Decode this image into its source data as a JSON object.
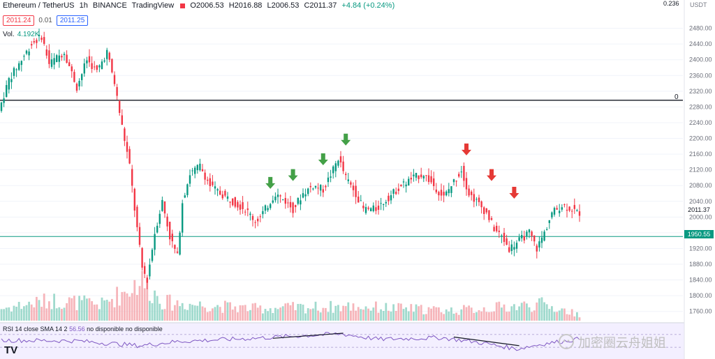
{
  "header": {
    "symbol": "Ethereum / TetherUS",
    "interval": "1h",
    "exchange": "BINANCE",
    "source": "TradingView",
    "open": "O2006.53",
    "high": "H2016.88",
    "low": "L2006.53",
    "close": "C2011.37",
    "change": "+4.84 (+0.24%)",
    "bid": "2011.24",
    "spread": "0.01",
    "ask": "2011.25",
    "vol_label": "Vol.",
    "vol_value": "4.192K"
  },
  "axis": {
    "currency": "USDT",
    "top_value": "0.236"
  },
  "zero_label": "0",
  "last_price_label": "2011.37",
  "level_label": "1950.55",
  "rsi": {
    "legend": "RSI 14 close SMA 14 2",
    "value": "56.56",
    "na1": "no disponible",
    "na2": "no disponible"
  },
  "watermark": {
    "text": "加密圈云舟姐姐"
  },
  "logo": {
    "text": "TV"
  },
  "colors": {
    "up": "#089981",
    "down": "#f23645",
    "rsi": "#7e57c2",
    "level": "#089981"
  },
  "chart_data": {
    "type": "candlestick",
    "y_ticks": [
      2480,
      2440,
      2400,
      2360,
      2320,
      2280,
      2240,
      2200,
      2160,
      2120,
      2080,
      2040,
      2000,
      1960,
      1920,
      1880,
      1840,
      1800,
      1760
    ],
    "ylim": [
      1740,
      2520
    ],
    "horizontal_levels": [
      2297,
      1950.55
    ],
    "path": [
      [
        0,
        2270
      ],
      [
        4,
        2350
      ],
      [
        9,
        2400
      ],
      [
        13,
        2440
      ],
      [
        17,
        2460
      ],
      [
        20,
        2390
      ],
      [
        26,
        2420
      ],
      [
        31,
        2330
      ],
      [
        35,
        2400
      ],
      [
        39,
        2370
      ],
      [
        43,
        2420
      ],
      [
        46,
        2340
      ],
      [
        49,
        2230
      ],
      [
        52,
        2130
      ],
      [
        54,
        2020
      ],
      [
        57,
        1870
      ],
      [
        59,
        1840
      ],
      [
        62,
        1960
      ],
      [
        65,
        2040
      ],
      [
        68,
        1950
      ],
      [
        71,
        1900
      ],
      [
        73,
        2040
      ],
      [
        76,
        2110
      ],
      [
        80,
        2130
      ],
      [
        84,
        2080
      ],
      [
        88,
        2060
      ],
      [
        93,
        2040
      ],
      [
        98,
        2020
      ],
      [
        102,
        1990
      ],
      [
        104,
        2000
      ],
      [
        107,
        2030
      ],
      [
        110,
        2060
      ],
      [
        114,
        2040
      ],
      [
        117,
        2020
      ],
      [
        121,
        2060
      ],
      [
        125,
        2080
      ],
      [
        129,
        2070
      ],
      [
        133,
        2120
      ],
      [
        135,
        2150
      ],
      [
        138,
        2100
      ],
      [
        142,
        2060
      ],
      [
        145,
        2020
      ],
      [
        150,
        2020
      ],
      [
        155,
        2050
      ],
      [
        160,
        2080
      ],
      [
        165,
        2100
      ],
      [
        169,
        2110
      ],
      [
        173,
        2080
      ],
      [
        177,
        2050
      ],
      [
        180,
        2080
      ],
      [
        184,
        2120
      ],
      [
        187,
        2060
      ],
      [
        190,
        2040
      ],
      [
        194,
        2010
      ],
      [
        197,
        1970
      ],
      [
        200,
        1950
      ],
      [
        203,
        1920
      ],
      [
        207,
        1940
      ],
      [
        211,
        1960
      ],
      [
        214,
        1920
      ],
      [
        217,
        1960
      ],
      [
        220,
        2010
      ],
      [
        224,
        2030
      ],
      [
        228,
        2020
      ],
      [
        230,
        2011
      ]
    ],
    "volume_path": [
      [
        0,
        0.3
      ],
      [
        20,
        0.5
      ],
      [
        40,
        0.4
      ],
      [
        50,
        0.75
      ],
      [
        55,
        1.0
      ],
      [
        65,
        0.45
      ],
      [
        100,
        0.3
      ],
      [
        140,
        0.35
      ],
      [
        180,
        0.25
      ],
      [
        215,
        0.4
      ],
      [
        230,
        0.15
      ]
    ],
    "rsi_path": [
      [
        0,
        52
      ],
      [
        30,
        50
      ],
      [
        55,
        35
      ],
      [
        70,
        48
      ],
      [
        100,
        58
      ],
      [
        120,
        66
      ],
      [
        135,
        72
      ],
      [
        150,
        55
      ],
      [
        175,
        60
      ],
      [
        190,
        45
      ],
      [
        205,
        25
      ],
      [
        215,
        40
      ],
      [
        230,
        56
      ]
    ],
    "trendlines_rsi": [
      {
        "from": [
          108,
          58
        ],
        "to": [
          136,
          74
        ]
      },
      {
        "from": [
          180,
          62
        ],
        "to": [
          206,
          35
        ]
      }
    ],
    "markers": [
      {
        "type": "buy-arrow",
        "i": 107,
        "price": 2070
      },
      {
        "type": "buy-arrow",
        "i": 116,
        "price": 2090
      },
      {
        "type": "buy-arrow",
        "i": 128,
        "price": 2130
      },
      {
        "type": "buy-arrow",
        "i": 137,
        "price": 2180
      },
      {
        "type": "sell-arrow",
        "i": 185,
        "price": 2155
      },
      {
        "type": "sell-arrow",
        "i": 195,
        "price": 2090
      },
      {
        "type": "sell-arrow",
        "i": 204,
        "price": 2045
      }
    ]
  }
}
